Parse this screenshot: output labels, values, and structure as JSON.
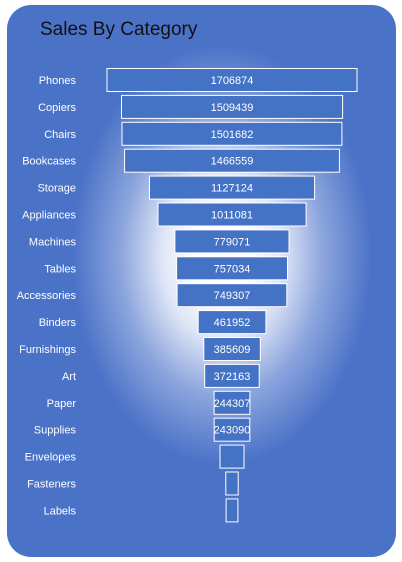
{
  "chart_data": {
    "type": "bar",
    "orientation": "horizontal-funnel",
    "title": "Sales By Category",
    "categories": [
      "Phones",
      "Copiers",
      "Chairs",
      "Bookcases",
      "Storage",
      "Appliances",
      "Machines",
      "Tables",
      "Accessories",
      "Binders",
      "Furnishings",
      "Art",
      "Paper",
      "Supplies",
      "Envelopes",
      "Fasteners",
      "Labels"
    ],
    "values": [
      1706874,
      1509439,
      1501682,
      1466559,
      1127124,
      1011081,
      779071,
      757034,
      749307,
      461952,
      385609,
      372163,
      244307,
      243090,
      164186,
      84828,
      80291
    ],
    "data_labels": [
      "1706874",
      "1509439",
      "1501682",
      "1466559",
      "1127124",
      "1011081",
      "779071",
      "757034",
      "749307",
      "461952",
      "385609",
      "372163",
      "244307",
      "243090",
      "",
      "",
      ""
    ],
    "grid": false,
    "legend": "none"
  },
  "colors": {
    "bar": "#4472c4",
    "background": "#4472c4",
    "glow": "#ffffff",
    "text": "#ffffff"
  }
}
